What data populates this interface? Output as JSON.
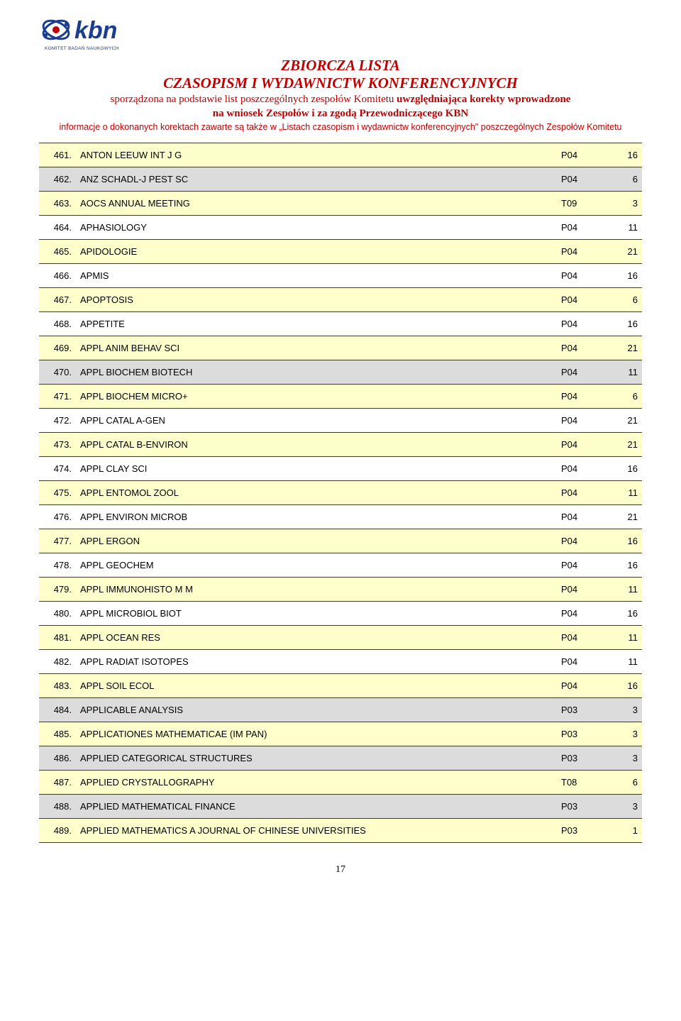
{
  "header": {
    "title1": "ZBIORCZA LISTA",
    "title2": "CZASOPISM I WYDAWNICTW KONFERENCYJNYCH",
    "sub1_plain": "sporządzona na podstawie list poszczególnych zespołów Komitetu ",
    "sub1_bold": "uwzględniająca korekty wprowadzone",
    "sub2_bold": "na wniosek Zespołów i za zgodą Przewodniczącego KBN",
    "info": "informacje o dokonanych korektach zawarte są także w „Listach czasopism i wydawnictw konferencyjnych\" poszczególnych Zespołów Komitetu"
  },
  "colors": {
    "accent": "#c00000",
    "row_yellow": "#ffffcc",
    "row_gray": "#dcdcdc",
    "row_white": "#ffffff",
    "border": "#c00000"
  },
  "table": {
    "rows": [
      {
        "num": "461.",
        "title": "ANTON LEEUW INT J G",
        "code": "P04",
        "score": "16",
        "bg": "yellow"
      },
      {
        "num": "462.",
        "title": "ANZ SCHADL-J PEST SC",
        "code": "P04",
        "score": "6",
        "bg": "gray"
      },
      {
        "num": "463.",
        "title": "AOCS ANNUAL MEETING",
        "code": "T09",
        "score": "3",
        "bg": "yellow"
      },
      {
        "num": "464.",
        "title": "APHASIOLOGY",
        "code": "P04",
        "score": "11",
        "bg": "white"
      },
      {
        "num": "465.",
        "title": "APIDOLOGIE",
        "code": "P04",
        "score": "21",
        "bg": "yellow"
      },
      {
        "num": "466.",
        "title": "APMIS",
        "code": "P04",
        "score": "16",
        "bg": "white"
      },
      {
        "num": "467.",
        "title": "APOPTOSIS",
        "code": "P04",
        "score": "6",
        "bg": "yellow"
      },
      {
        "num": "468.",
        "title": "APPETITE",
        "code": "P04",
        "score": "16",
        "bg": "white"
      },
      {
        "num": "469.",
        "title": "APPL ANIM BEHAV SCI",
        "code": "P04",
        "score": "21",
        "bg": "yellow"
      },
      {
        "num": "470.",
        "title": "APPL BIOCHEM BIOTECH",
        "code": "P04",
        "score": "11",
        "bg": "gray"
      },
      {
        "num": "471.",
        "title": "APPL BIOCHEM MICRO+",
        "code": "P04",
        "score": "6",
        "bg": "yellow"
      },
      {
        "num": "472.",
        "title": "APPL CATAL A-GEN",
        "code": "P04",
        "score": "21",
        "bg": "white"
      },
      {
        "num": "473.",
        "title": "APPL CATAL B-ENVIRON",
        "code": "P04",
        "score": "21",
        "bg": "yellow"
      },
      {
        "num": "474.",
        "title": "APPL CLAY SCI",
        "code": "P04",
        "score": "16",
        "bg": "white"
      },
      {
        "num": "475.",
        "title": "APPL ENTOMOL ZOOL",
        "code": "P04",
        "score": "11",
        "bg": "yellow"
      },
      {
        "num": "476.",
        "title": "APPL ENVIRON MICROB",
        "code": "P04",
        "score": "21",
        "bg": "white"
      },
      {
        "num": "477.",
        "title": "APPL ERGON",
        "code": "P04",
        "score": "16",
        "bg": "yellow"
      },
      {
        "num": "478.",
        "title": "APPL GEOCHEM",
        "code": "P04",
        "score": "16",
        "bg": "white"
      },
      {
        "num": "479.",
        "title": "APPL IMMUNOHISTO M M",
        "code": "P04",
        "score": "11",
        "bg": "yellow"
      },
      {
        "num": "480.",
        "title": "APPL MICROBIOL BIOT",
        "code": "P04",
        "score": "16",
        "bg": "white"
      },
      {
        "num": "481.",
        "title": "APPL OCEAN RES",
        "code": "P04",
        "score": "11",
        "bg": "yellow"
      },
      {
        "num": "482.",
        "title": "APPL RADIAT ISOTOPES",
        "code": "P04",
        "score": "11",
        "bg": "white"
      },
      {
        "num": "483.",
        "title": "APPL SOIL ECOL",
        "code": "P04",
        "score": "16",
        "bg": "yellow"
      },
      {
        "num": "484.",
        "title": "APPLICABLE ANALYSIS",
        "code": "P03",
        "score": "3",
        "bg": "gray"
      },
      {
        "num": "485.",
        "title": "APPLICATIONES MATHEMATICAE (IM PAN)",
        "code": "P03",
        "score": "3",
        "bg": "yellow"
      },
      {
        "num": "486.",
        "title": "APPLIED CATEGORICAL STRUCTURES",
        "code": "P03",
        "score": "3",
        "bg": "gray"
      },
      {
        "num": "487.",
        "title": "APPLIED CRYSTALLOGRAPHY",
        "code": "T08",
        "score": "6",
        "bg": "yellow"
      },
      {
        "num": "488.",
        "title": "APPLIED MATHEMATICAL FINANCE",
        "code": "P03",
        "score": "3",
        "bg": "gray"
      },
      {
        "num": "489.",
        "title": "APPLIED MATHEMATICS  A JOURNAL OF CHINESE UNIVERSITIES",
        "code": "P03",
        "score": "1",
        "bg": "yellow"
      }
    ]
  },
  "page_number": "17"
}
